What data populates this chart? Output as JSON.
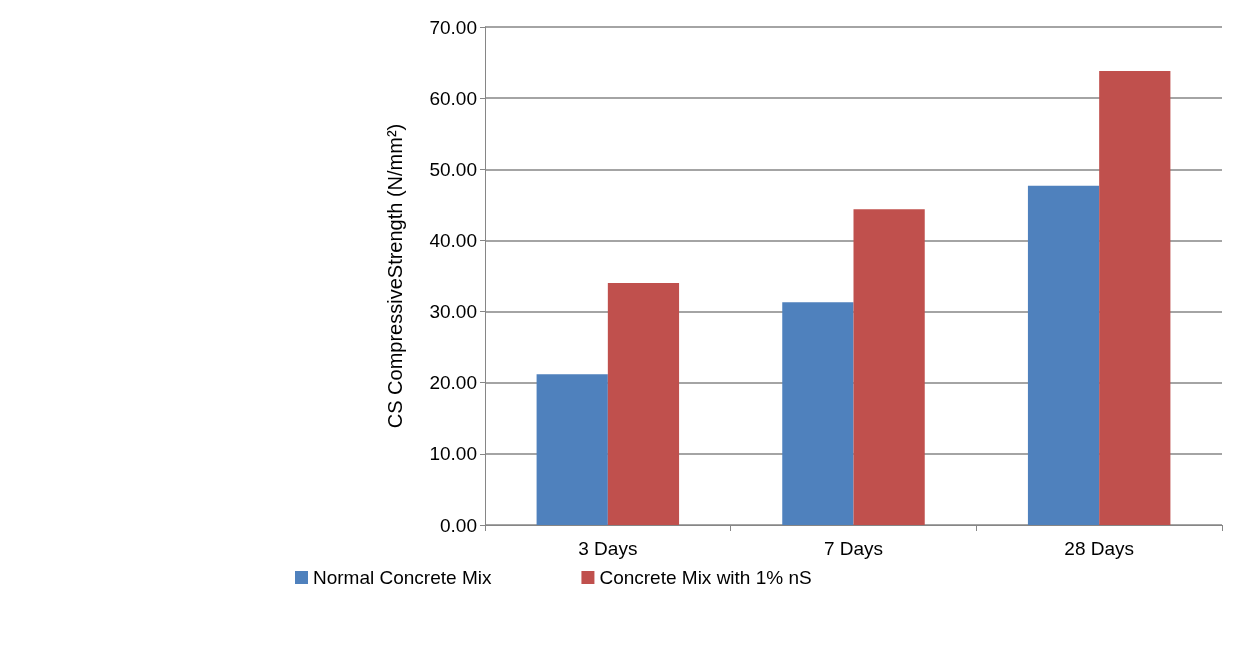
{
  "chart_data": {
    "type": "bar",
    "ylabel": "CS CompressiveStrength (N/mm²)",
    "categories": [
      "3 Days",
      "7 Days",
      "28 Days"
    ],
    "series": [
      {
        "name": "Normal Concrete Mix",
        "color": "#4f81bd",
        "values": [
          21.2,
          31.3,
          47.7
        ]
      },
      {
        "name": "Concrete Mix with 1% nS",
        "color": "#c0504d",
        "values": [
          34.0,
          44.4,
          63.8
        ]
      }
    ],
    "ylim": [
      0,
      70
    ],
    "yticks": [
      {
        "value": 0,
        "label": "0.00"
      },
      {
        "value": 10,
        "label": "10.00"
      },
      {
        "value": 20,
        "label": "20.00"
      },
      {
        "value": 30,
        "label": "30.00"
      },
      {
        "value": 40,
        "label": "40.00"
      },
      {
        "value": 50,
        "label": "50.00"
      },
      {
        "value": 60,
        "label": "60.00"
      },
      {
        "value": 70,
        "label": "70.00"
      }
    ],
    "grid": "y",
    "legend": "bottom"
  }
}
